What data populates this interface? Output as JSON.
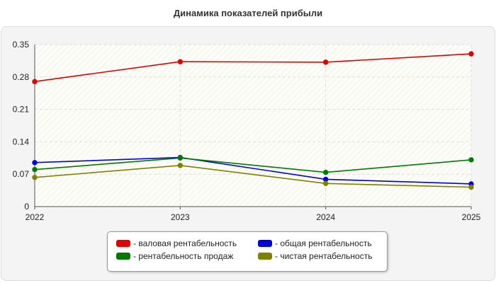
{
  "title": "Динамика показателей прибыли",
  "colors": {
    "background": "#ffffff",
    "panel": "#f4f4f4",
    "grid": "#dddddd",
    "axis": "#555555"
  },
  "chart_data": {
    "type": "line",
    "title": "Динамика показателей прибыли",
    "x": [
      "2022",
      "2023",
      "2024",
      "2025"
    ],
    "ylim": [
      0,
      0.35
    ],
    "yticks": [
      "0",
      "0.07",
      "0.14",
      "0.21",
      "0.28",
      "0.35"
    ],
    "grid": true,
    "legend_position": "bottom",
    "series": [
      {
        "name": "- валовая рентабельность",
        "color": "#e00000",
        "values": [
          0.27,
          0.313,
          0.312,
          0.33
        ]
      },
      {
        "name": "- общая рентабельность",
        "color": "#0000e0",
        "values": [
          0.095,
          0.106,
          0.059,
          0.049
        ]
      },
      {
        "name": "- рентабельность продаж",
        "color": "#007a00",
        "values": [
          0.08,
          0.105,
          0.074,
          0.101
        ]
      },
      {
        "name": "- чистая рентабельность",
        "color": "#808000",
        "values": [
          0.063,
          0.089,
          0.05,
          0.042
        ]
      }
    ]
  }
}
